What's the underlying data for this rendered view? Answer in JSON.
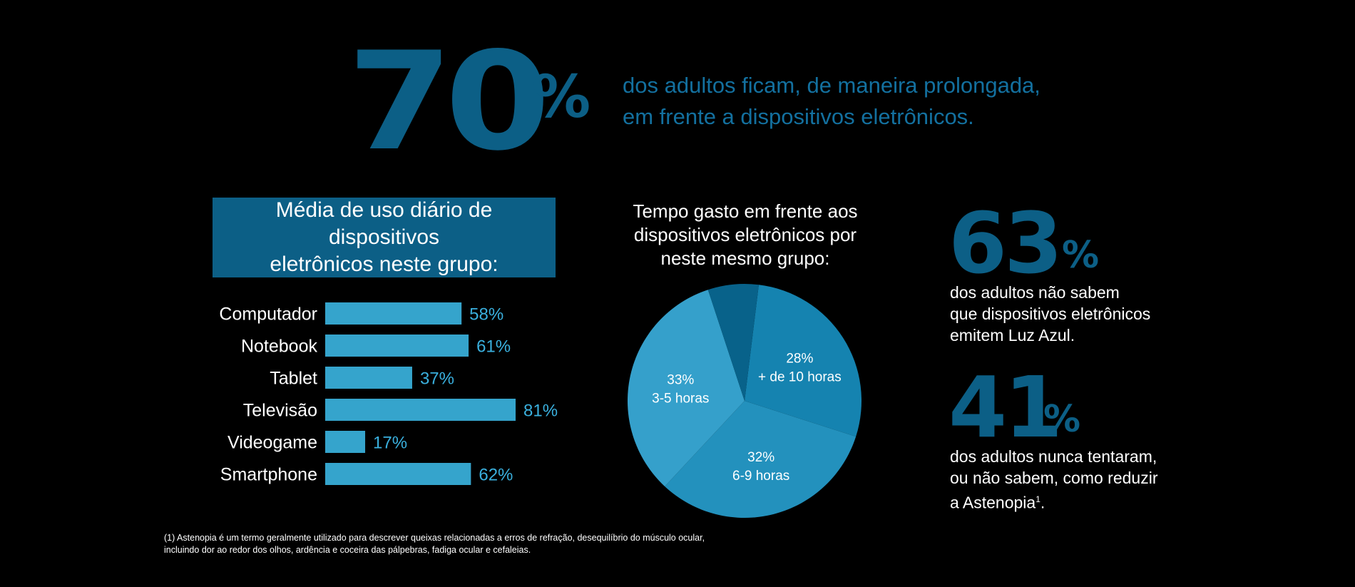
{
  "hero": {
    "number": "70",
    "percent": "%",
    "line1": "dos adultos ficam, de maneira prolongada,",
    "line2": "em frente a dispositivos eletrônicos."
  },
  "colors": {
    "background": "#000000",
    "dark_blue": "#0c5f86",
    "hero_text": "#13709f",
    "bar_fill": "#35a4cc",
    "bar_label": "#3ab0de",
    "pie_slices": [
      "#1583b0",
      "#2391bd",
      "#35a0cb",
      "#08628a"
    ]
  },
  "chart_data": [
    {
      "type": "bar",
      "orientation": "horizontal",
      "title": "Média de uso diário de dispositivos eletrônicos neste grupo:",
      "title_lines": [
        "Média de uso diário de dispositivos",
        "eletrônicos neste grupo:"
      ],
      "categories": [
        "Computador",
        "Notebook",
        "Tablet",
        "Televisão",
        "Videogame",
        "Smartphone"
      ],
      "values": [
        58,
        61,
        37,
        81,
        17,
        62
      ],
      "value_labels": [
        "58%",
        "61%",
        "37%",
        "81%",
        "17%",
        "62%"
      ],
      "xlim": [
        0,
        100
      ],
      "grid": false,
      "legend": false
    },
    {
      "type": "pie",
      "title": "Tempo gasto em frente aos dispositivos eletrônicos por neste mesmo grupo:",
      "title_lines": [
        "Tempo gasto em frente aos",
        "dispositivos eletrônicos por",
        "neste mesmo grupo:"
      ],
      "slices": [
        {
          "pct": "28%",
          "label": "+ de 10 horas",
          "value": 28
        },
        {
          "pct": "32%",
          "label": "6-9 horas",
          "value": 32
        },
        {
          "pct": "33%",
          "label": "3-5 horas",
          "value": 33
        },
        {
          "pct": "",
          "label": "",
          "value": 7
        }
      ],
      "legend": false
    }
  ],
  "stats": [
    {
      "number": "63",
      "percent": "%",
      "lines": [
        "dos adultos não sabem",
        "que dispositivos eletrônicos",
        "emitem Luz Azul."
      ]
    },
    {
      "number": "41",
      "percent": "%",
      "lines": [
        "dos adultos nunca tentaram,",
        "ou não sabem, como reduzir",
        "a Astenopia"
      ],
      "superscript": "1",
      "trailing": "."
    }
  ],
  "footnote": {
    "line1": "(1) Astenopia é um termo geralmente utilizado para descrever queixas relacionadas a erros de refração, desequilíbrio do músculo ocular,",
    "line2": "incluindo dor ao redor dos olhos, ardência e coceira das pálpebras, fadiga ocular e cefaleias."
  }
}
